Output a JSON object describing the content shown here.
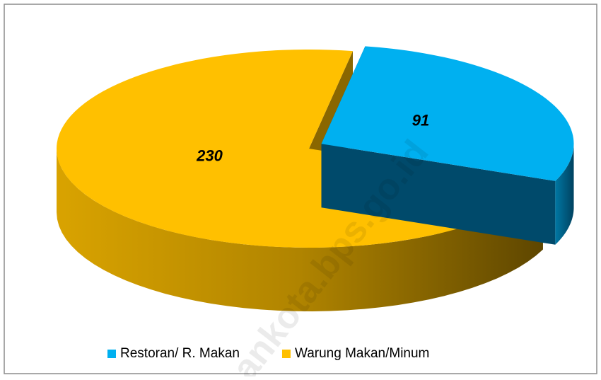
{
  "chart_data": {
    "type": "pie3d",
    "categories": [
      "Restoran/ R. Makan",
      "Warung Makan/Minum"
    ],
    "values": [
      91,
      230
    ],
    "colors": [
      "#00b0f0",
      "#ffc000"
    ],
    "legend": "bottom",
    "watermark": "ankota.bps.go.id"
  }
}
